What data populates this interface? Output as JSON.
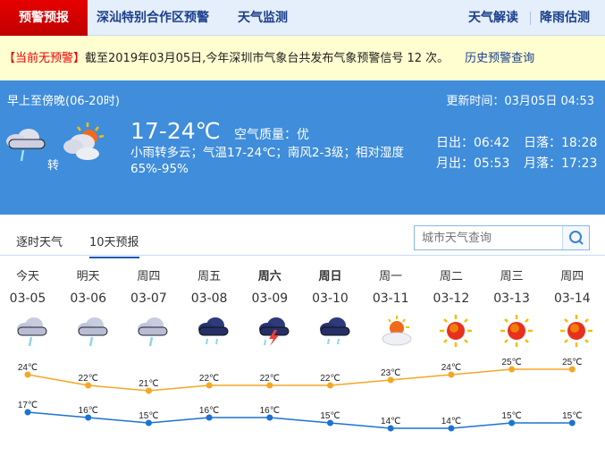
{
  "nav": {
    "active": "预警预报",
    "links": [
      "深汕特别合作区预警",
      "天气监测"
    ],
    "right_links": [
      "天气解读",
      "降雨估测"
    ]
  },
  "warning": {
    "status": "【当前无预警】",
    "text": "截至2019年03月05日,今年深圳市气象台共发布气象预警信号 12 次。",
    "history_link": "历史预警查询"
  },
  "current": {
    "period": "早上至傍晚(06-20时)",
    "updated": "更新时间：03月05日 04:53",
    "icons": [
      "light-rain-icon",
      "partly-cloudy-icon"
    ],
    "transition": "转",
    "temp": "17-24℃",
    "air_quality": "空气质量：优",
    "description": "小雨转多云；气温17-24℃；南风2-3级；相对湿度65%-95%",
    "sunrise": "日出：06:42",
    "sunset": "日落：18:28",
    "moonrise": "月出：05:53",
    "moonset": "月落：17:23"
  },
  "tabs": [
    {
      "label": "逐时天气",
      "active": false
    },
    {
      "label": "10天预报",
      "active": true
    }
  ],
  "search": {
    "placeholder": "城市天气查询",
    "icon": "search-icon"
  },
  "colors": {
    "high": "#f5a623",
    "low": "#1a73d4",
    "panel": "#3f8ddb",
    "accent": "#e00000"
  },
  "forecast": [
    {
      "day": "今天",
      "date": "03-05",
      "icon": "light-rain",
      "bold": false
    },
    {
      "day": "明天",
      "date": "03-06",
      "icon": "light-rain",
      "bold": false
    },
    {
      "day": "周四",
      "date": "03-07",
      "icon": "light-rain",
      "bold": false
    },
    {
      "day": "周五",
      "date": "03-08",
      "icon": "moderate-rain",
      "bold": false
    },
    {
      "day": "周六",
      "date": "03-09",
      "icon": "thunderstorm",
      "bold": true
    },
    {
      "day": "周日",
      "date": "03-10",
      "icon": "moderate-rain",
      "bold": true
    },
    {
      "day": "周一",
      "date": "03-11",
      "icon": "partly-cloudy",
      "bold": false
    },
    {
      "day": "周二",
      "date": "03-12",
      "icon": "sunny",
      "bold": false
    },
    {
      "day": "周三",
      "date": "03-13",
      "icon": "sunny",
      "bold": false
    },
    {
      "day": "周四",
      "date": "03-14",
      "icon": "sunny",
      "bold": false
    }
  ],
  "chart_data": {
    "type": "line",
    "categories": [
      "03-05",
      "03-06",
      "03-07",
      "03-08",
      "03-09",
      "03-10",
      "03-11",
      "03-12",
      "03-13",
      "03-14"
    ],
    "unit": "℃",
    "series": [
      {
        "values": [
          24,
          22,
          21,
          22,
          22,
          22,
          23,
          24,
          25,
          25
        ],
        "color": "#f5a623"
      },
      {
        "values": [
          17,
          16,
          15,
          16,
          16,
          15,
          14,
          14,
          15,
          15
        ],
        "color": "#1a73d4"
      }
    ]
  }
}
